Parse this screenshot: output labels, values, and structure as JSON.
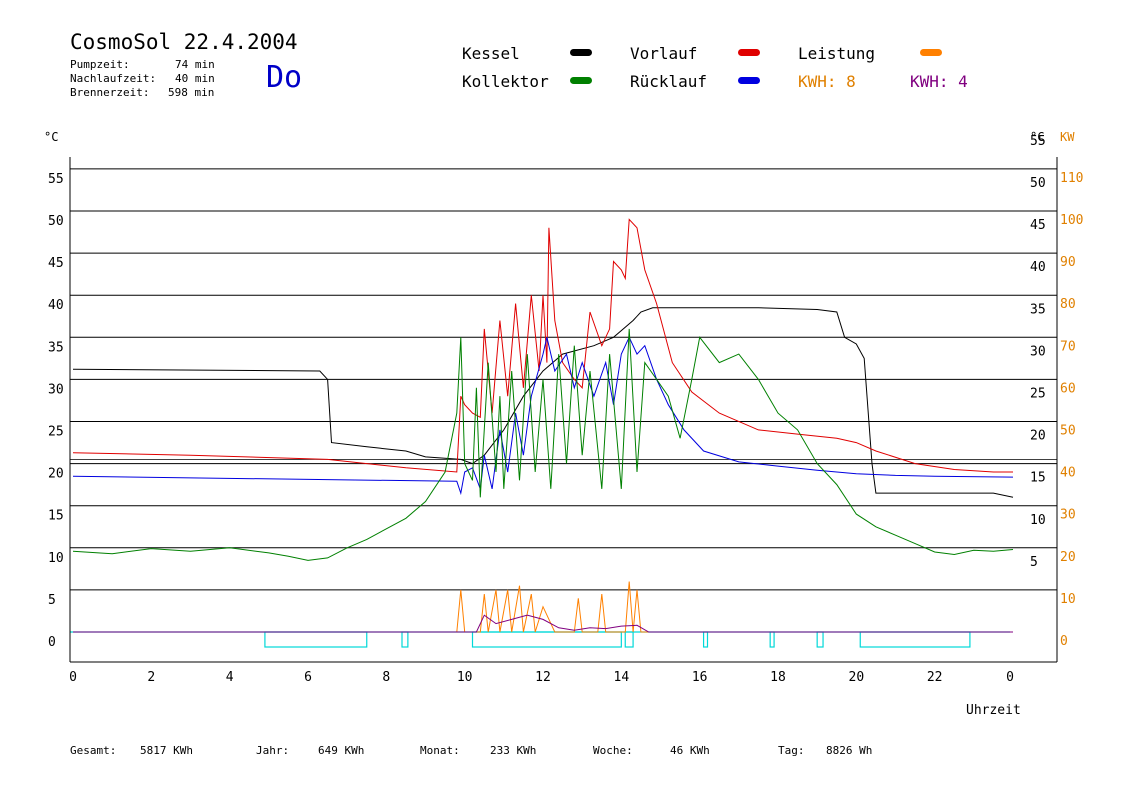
{
  "header": {
    "title": "CosmoSol 22.4.2004",
    "day": "Do",
    "stats": [
      {
        "label": "Pumpzeit:",
        "value": "74 min"
      },
      {
        "label": "Nachlaufzeit:",
        "value": "40 min"
      },
      {
        "label": "Brennerzeit:",
        "value": "598 min"
      }
    ]
  },
  "legend": {
    "items": [
      {
        "label": "Kessel",
        "color": "#000000"
      },
      {
        "label": "Vorlauf",
        "color": "#e00000"
      },
      {
        "label": "Leistung",
        "color": "#ff8000"
      },
      {
        "label": "Kollektor",
        "color": "#008000"
      },
      {
        "label": "Rücklauf",
        "color": "#0000e0"
      }
    ],
    "kwh1": "KWH: 8",
    "kwh1_color": "#e08000",
    "kwh2": "KWH: 4",
    "kwh2_color": "#800080"
  },
  "footer": [
    {
      "label": "Gesamt:",
      "value": "5817 KWh"
    },
    {
      "label": "Jahr:",
      "value": "649 KWh"
    },
    {
      "label": "Monat:",
      "value": "233 KWh"
    },
    {
      "label": "Woche:",
      "value": "46 KWh"
    },
    {
      "label": "Tag:",
      "value": "8826 Wh"
    }
  ],
  "chart_data": {
    "type": "line",
    "xlabel": "Uhrzeit",
    "ylabel_left": "°C",
    "ylabel_right": "°C",
    "ylabel_right2": "KW",
    "x_ticks": [
      "0",
      "2",
      "4",
      "6",
      "8",
      "10",
      "12",
      "14",
      "16",
      "18",
      "20",
      "22",
      "0"
    ],
    "xlim": [
      0,
      24
    ],
    "ylim": [
      0,
      55
    ],
    "y_ticks_left": [
      "0",
      "5",
      "10",
      "15",
      "20",
      "25",
      "30",
      "35",
      "40",
      "45",
      "50",
      "55"
    ],
    "y_ticks_right": [
      "5",
      "10",
      "15",
      "20",
      "25",
      "30",
      "35",
      "40",
      "45",
      "50",
      "55"
    ],
    "y_ticks_right2": [
      "0",
      "10",
      "20",
      "30",
      "40",
      "50",
      "60",
      "70",
      "80",
      "90",
      "100",
      "110"
    ],
    "grid": true,
    "series": [
      {
        "name": "Kessel",
        "color": "#000000",
        "points": [
          [
            0,
            31.2
          ],
          [
            6.3,
            31
          ],
          [
            6.5,
            30
          ],
          [
            6.6,
            22.5
          ],
          [
            7.5,
            22
          ],
          [
            8.5,
            21.5
          ],
          [
            9,
            20.8
          ],
          [
            9.9,
            20.5
          ],
          [
            10.2,
            20
          ],
          [
            10.5,
            21
          ],
          [
            11,
            24
          ],
          [
            11.5,
            28
          ],
          [
            12,
            31
          ],
          [
            12.5,
            33
          ],
          [
            13.3,
            34
          ],
          [
            13.8,
            35
          ],
          [
            14.3,
            37
          ],
          [
            14.5,
            38
          ],
          [
            14.8,
            38.5
          ],
          [
            17.5,
            38.5
          ],
          [
            19,
            38.3
          ],
          [
            19.5,
            38
          ],
          [
            19.7,
            35
          ],
          [
            20,
            34.2
          ],
          [
            20.2,
            32.5
          ],
          [
            20.4,
            20
          ],
          [
            20.5,
            16.5
          ],
          [
            23.5,
            16.5
          ],
          [
            24,
            16
          ]
        ]
      },
      {
        "name": "Vorlauf",
        "color": "#e00000",
        "points": [
          [
            0,
            21.3
          ],
          [
            3,
            21
          ],
          [
            6.5,
            20.5
          ],
          [
            7.5,
            20
          ],
          [
            8.5,
            19.5
          ],
          [
            9.8,
            19
          ],
          [
            9.9,
            28
          ],
          [
            10,
            27
          ],
          [
            10.2,
            26
          ],
          [
            10.4,
            25.5
          ],
          [
            10.5,
            36
          ],
          [
            10.7,
            26
          ],
          [
            10.9,
            37
          ],
          [
            11.1,
            28
          ],
          [
            11.3,
            39
          ],
          [
            11.5,
            29
          ],
          [
            11.7,
            40
          ],
          [
            11.9,
            31
          ],
          [
            12,
            40
          ],
          [
            12.1,
            32
          ],
          [
            12.15,
            48
          ],
          [
            12.3,
            37
          ],
          [
            12.5,
            32
          ],
          [
            12.8,
            30
          ],
          [
            13,
            29
          ],
          [
            13.2,
            38
          ],
          [
            13.5,
            34
          ],
          [
            13.7,
            36
          ],
          [
            13.8,
            44
          ],
          [
            14,
            43
          ],
          [
            14.1,
            42
          ],
          [
            14.2,
            49
          ],
          [
            14.4,
            48
          ],
          [
            14.6,
            43
          ],
          [
            14.9,
            39
          ],
          [
            15.3,
            32
          ],
          [
            15.8,
            28.5
          ],
          [
            16.5,
            26
          ],
          [
            17.5,
            24
          ],
          [
            18.5,
            23.5
          ],
          [
            19.5,
            23
          ],
          [
            20,
            22.5
          ],
          [
            20.5,
            21.5
          ],
          [
            21.5,
            20
          ],
          [
            22.5,
            19.3
          ],
          [
            23.5,
            19
          ],
          [
            24,
            19
          ]
        ]
      },
      {
        "name": "Rücklauf",
        "color": "#0000e0",
        "points": [
          [
            0,
            18.5
          ],
          [
            3,
            18.3
          ],
          [
            6.5,
            18.1
          ],
          [
            9.8,
            17.9
          ],
          [
            9.9,
            16.5
          ],
          [
            10,
            19
          ],
          [
            10.2,
            19.5
          ],
          [
            10.4,
            17
          ],
          [
            10.5,
            21
          ],
          [
            10.7,
            17
          ],
          [
            10.9,
            24
          ],
          [
            11.1,
            19
          ],
          [
            11.3,
            26
          ],
          [
            11.5,
            21
          ],
          [
            11.7,
            28
          ],
          [
            12,
            33
          ],
          [
            12.1,
            35
          ],
          [
            12.3,
            31
          ],
          [
            12.6,
            33
          ],
          [
            12.8,
            29
          ],
          [
            13,
            32
          ],
          [
            13.3,
            28
          ],
          [
            13.6,
            32
          ],
          [
            13.8,
            27
          ],
          [
            14,
            33
          ],
          [
            14.2,
            35
          ],
          [
            14.4,
            33
          ],
          [
            14.6,
            34
          ],
          [
            14.9,
            30
          ],
          [
            15.2,
            27
          ],
          [
            15.6,
            24
          ],
          [
            16.1,
            21.5
          ],
          [
            17,
            20.2
          ],
          [
            18,
            19.7
          ],
          [
            19,
            19.2
          ],
          [
            20,
            18.8
          ],
          [
            21,
            18.6
          ],
          [
            22,
            18.5
          ],
          [
            24,
            18.4
          ]
        ]
      },
      {
        "name": "Kollektor",
        "color": "#008000",
        "points": [
          [
            0,
            9.6
          ],
          [
            1,
            9.3
          ],
          [
            2,
            9.9
          ],
          [
            3,
            9.6
          ],
          [
            4,
            10
          ],
          [
            5,
            9.4
          ],
          [
            5.5,
            9
          ],
          [
            6,
            8.5
          ],
          [
            6.5,
            8.8
          ],
          [
            7,
            10
          ],
          [
            7.5,
            11
          ],
          [
            8.5,
            13.5
          ],
          [
            9,
            15.5
          ],
          [
            9.5,
            19
          ],
          [
            9.8,
            26
          ],
          [
            9.9,
            35
          ],
          [
            10,
            20
          ],
          [
            10.2,
            18
          ],
          [
            10.3,
            29
          ],
          [
            10.4,
            16
          ],
          [
            10.6,
            32
          ],
          [
            10.8,
            19
          ],
          [
            10.9,
            28
          ],
          [
            11,
            17
          ],
          [
            11.2,
            31
          ],
          [
            11.4,
            18
          ],
          [
            11.6,
            33
          ],
          [
            11.8,
            19
          ],
          [
            12,
            30
          ],
          [
            12.2,
            17
          ],
          [
            12.4,
            33
          ],
          [
            12.6,
            20
          ],
          [
            12.8,
            34
          ],
          [
            13,
            21
          ],
          [
            13.2,
            31
          ],
          [
            13.5,
            17
          ],
          [
            13.7,
            33
          ],
          [
            14,
            17
          ],
          [
            14.2,
            36
          ],
          [
            14.4,
            19
          ],
          [
            14.6,
            32
          ],
          [
            14.9,
            30
          ],
          [
            15.2,
            28
          ],
          [
            15.5,
            23
          ],
          [
            15.8,
            30
          ],
          [
            16,
            35
          ],
          [
            16.5,
            32
          ],
          [
            17,
            33
          ],
          [
            17.5,
            30
          ],
          [
            18,
            26
          ],
          [
            18.5,
            24
          ],
          [
            19,
            20
          ],
          [
            19.5,
            17.5
          ],
          [
            20,
            14
          ],
          [
            20.5,
            12.5
          ],
          [
            21,
            11.5
          ],
          [
            21.5,
            10.5
          ],
          [
            22,
            9.5
          ],
          [
            22.5,
            9.2
          ],
          [
            23,
            9.7
          ],
          [
            23.5,
            9.6
          ],
          [
            24,
            9.8
          ]
        ]
      },
      {
        "name": "Leistung",
        "color": "#ff8000",
        "points": [
          [
            0,
            0
          ],
          [
            9.8,
            0
          ],
          [
            9.9,
            5
          ],
          [
            10,
            0
          ],
          [
            10.4,
            0
          ],
          [
            10.5,
            4.5
          ],
          [
            10.6,
            0
          ],
          [
            10.8,
            5
          ],
          [
            10.9,
            0
          ],
          [
            11.1,
            5
          ],
          [
            11.2,
            0
          ],
          [
            11.4,
            5.5
          ],
          [
            11.5,
            0
          ],
          [
            11.7,
            4.5
          ],
          [
            11.8,
            0
          ],
          [
            12,
            3
          ],
          [
            12.3,
            0
          ],
          [
            12.8,
            0
          ],
          [
            12.9,
            4
          ],
          [
            13,
            0
          ],
          [
            13.4,
            0
          ],
          [
            13.5,
            4.5
          ],
          [
            13.6,
            0
          ],
          [
            14.1,
            0
          ],
          [
            14.2,
            6
          ],
          [
            14.3,
            0
          ],
          [
            14.4,
            5
          ],
          [
            14.5,
            0
          ],
          [
            24,
            0
          ]
        ]
      },
      {
        "name": "KWH 4",
        "color": "#800080",
        "points": [
          [
            0,
            0
          ],
          [
            10.3,
            0
          ],
          [
            10.5,
            2
          ],
          [
            10.8,
            1
          ],
          [
            11.2,
            1.5
          ],
          [
            11.6,
            2
          ],
          [
            12,
            1.5
          ],
          [
            12.4,
            0.5
          ],
          [
            12.8,
            0.2
          ],
          [
            13.2,
            0.5
          ],
          [
            13.6,
            0.4
          ],
          [
            14,
            0.7
          ],
          [
            14.4,
            0.8
          ],
          [
            14.7,
            0
          ],
          [
            24,
            0
          ]
        ]
      }
    ]
  }
}
